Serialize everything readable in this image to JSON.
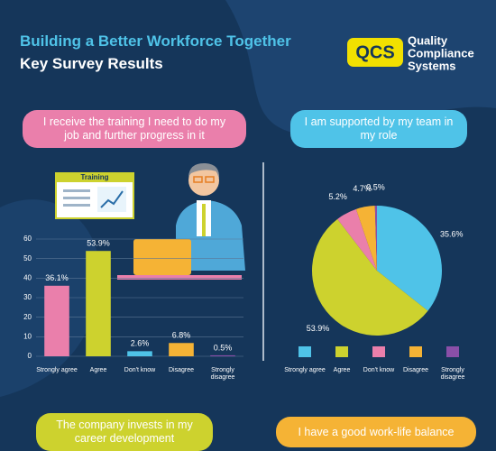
{
  "header": {
    "title": "Building a Better Workforce Together",
    "subtitle": "Key Survey Results"
  },
  "logo": {
    "mark": "QCS",
    "name": [
      "Quality",
      "Compliance",
      "Systems"
    ]
  },
  "illustration": {
    "label": "Training"
  },
  "chart_data": [
    {
      "type": "bar",
      "title": "I receive the training I need to do my job and further progress in it",
      "categories": [
        "Strongly agree",
        "Agree",
        "Don't know",
        "Disagree",
        "Strongly disagree"
      ],
      "values": [
        36.1,
        53.9,
        2.6,
        6.8,
        0.5
      ],
      "value_labels": [
        "36.1%",
        "53.9%",
        "2.6%",
        "6.8%",
        "0.5%"
      ],
      "colors": [
        "#ea7fab",
        "#cdd22e",
        "#4fc3e8",
        "#f5b335",
        "#8a4fa8"
      ],
      "ylim": [
        0,
        60
      ],
      "yticks": [
        0,
        10,
        20,
        30,
        40,
        50,
        60
      ],
      "grid": true
    },
    {
      "type": "pie",
      "title": "I am supported by my team in my role",
      "categories": [
        "Strongly agree",
        "Agree",
        "Don't know",
        "Disagree",
        "Strongly disagree"
      ],
      "values": [
        35.6,
        53.9,
        5.2,
        4.7,
        0.5
      ],
      "value_labels": [
        "35.6%",
        "53.9%",
        "5.2%",
        "4.7%",
        "0.5%"
      ],
      "colors": [
        "#4fc3e8",
        "#cdd22e",
        "#ea7fab",
        "#f5b335",
        "#8a4fa8"
      ]
    }
  ],
  "banners": [
    "The company invests in my career development",
    "I have a good work-life balance"
  ]
}
